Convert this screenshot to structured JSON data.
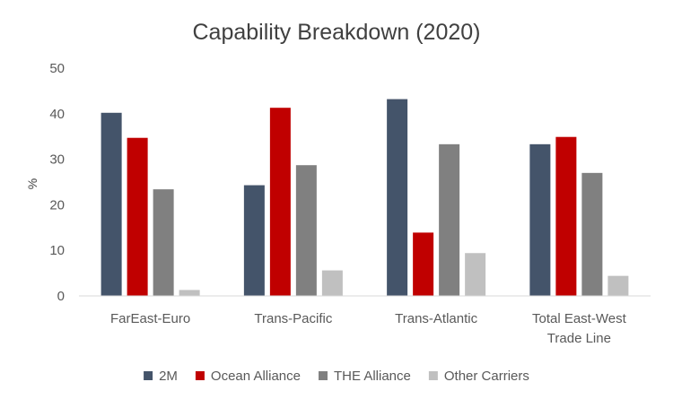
{
  "chart_data": {
    "type": "bar",
    "title": "Capability Breakdown (2020)",
    "ylabel": "%",
    "xlabel": "",
    "ylim": [
      0,
      50
    ],
    "yticks": [
      0,
      10,
      20,
      30,
      40,
      50
    ],
    "grid": false,
    "legend_position": "bottom",
    "categories": [
      "FarEast-Euro",
      "Trans-Pacific",
      "Trans-Atlantic",
      "Total East-West Trade Line"
    ],
    "category_label_lines": [
      [
        "FarEast-Euro"
      ],
      [
        "Trans-Pacific"
      ],
      [
        "Trans-Atlantic"
      ],
      [
        "Total East-West",
        "Trade Line"
      ]
    ],
    "series": [
      {
        "name": "2M",
        "color": "#44546a",
        "values": [
          40.2,
          24.3,
          43.2,
          33.3
        ]
      },
      {
        "name": "Ocean Alliance",
        "color": "#c00000",
        "values": [
          34.7,
          41.3,
          13.9,
          34.9
        ]
      },
      {
        "name": "THE Alliance",
        "color": "#808080",
        "values": [
          23.4,
          28.7,
          33.3,
          27.0
        ]
      },
      {
        "name": "Other Carriers",
        "color": "#c0c0c0",
        "values": [
          1.3,
          5.6,
          9.4,
          4.4
        ]
      }
    ]
  }
}
